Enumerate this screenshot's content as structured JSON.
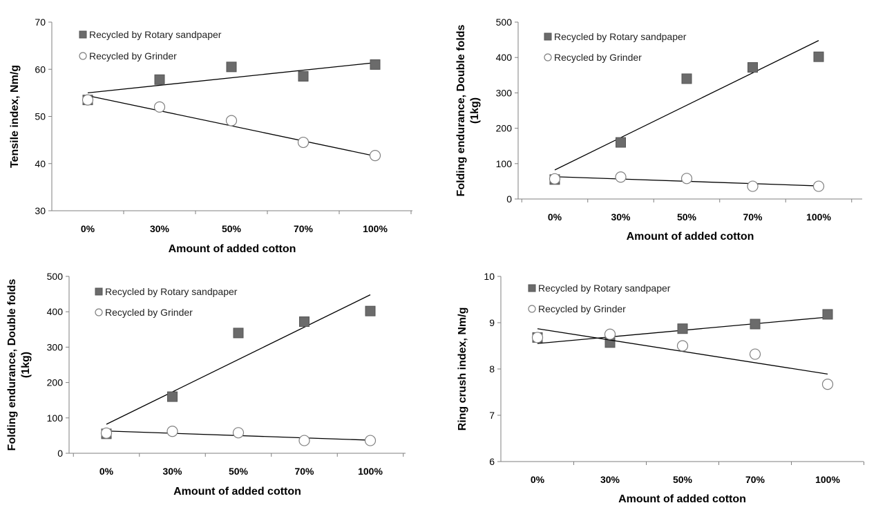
{
  "chart_data": [
    {
      "type": "scatter",
      "title": "",
      "categories": [
        "0%",
        "30%",
        "50%",
        "70%",
        "100%"
      ],
      "xlabel": "Amount of added cotton",
      "ylabel_lines": [
        "Tensile index, Nm/g"
      ],
      "ylim": [
        30,
        70
      ],
      "yticks": [
        30,
        40,
        50,
        60,
        70
      ],
      "legend_position": "top-left",
      "series": [
        {
          "name": "Recycled by Rotary sandpaper",
          "marker": "square",
          "values": [
            53.5,
            57.8,
            60.5,
            58.5,
            61.0
          ],
          "trend": [
            55.0,
            61.4
          ]
        },
        {
          "name": "Recycled by Grinder",
          "marker": "circle",
          "values": [
            53.5,
            52.0,
            49.1,
            44.5,
            41.7
          ],
          "trend": [
            54.4,
            41.6
          ]
        }
      ]
    },
    {
      "type": "scatter",
      "title": "",
      "categories": [
        "0%",
        "30%",
        "50%",
        "70%",
        "100%"
      ],
      "xlabel": "Amount of added cotton",
      "ylabel_lines": [
        "Folding endurance, Double folds",
        "(1kg)"
      ],
      "ylim": [
        0,
        500
      ],
      "yticks": [
        0,
        100,
        200,
        300,
        400,
        500
      ],
      "legend_position": "top-left",
      "series": [
        {
          "name": "Recycled by Rotary sandpaper",
          "marker": "square",
          "values": [
            55,
            160,
            340,
            372,
            402
          ],
          "trend": [
            82,
            448
          ]
        },
        {
          "name": "Recycled by Grinder",
          "marker": "circle",
          "values": [
            57,
            62,
            58,
            36,
            36
          ],
          "trend": [
            63,
            37
          ]
        }
      ]
    },
    {
      "type": "scatter",
      "title": "",
      "categories": [
        "0%",
        "30%",
        "50%",
        "70%",
        "100%"
      ],
      "xlabel": "Amount of added cotton",
      "ylabel_lines": [
        "Folding endurance, Double folds",
        "(1kg)"
      ],
      "ylim": [
        0,
        500
      ],
      "yticks": [
        0,
        100,
        200,
        300,
        400,
        500
      ],
      "legend_position": "top-left",
      "series": [
        {
          "name": "Recycled by Rotary sandpaper",
          "marker": "square",
          "values": [
            55,
            160,
            340,
            372,
            402
          ],
          "trend": [
            82,
            448
          ]
        },
        {
          "name": "Recycled by Grinder",
          "marker": "circle",
          "values": [
            57,
            62,
            58,
            36,
            36
          ],
          "trend": [
            63,
            37
          ]
        }
      ]
    },
    {
      "type": "scatter",
      "title": "",
      "categories": [
        "0%",
        "30%",
        "50%",
        "70%",
        "100%"
      ],
      "xlabel": "Amount of added cotton",
      "ylabel_lines": [
        "Ring crush index, Nm/g"
      ],
      "ylim": [
        6,
        10
      ],
      "yticks": [
        6,
        7,
        8,
        9,
        10
      ],
      "legend_position": "top-left",
      "series": [
        {
          "name": "Recycled by Rotary sandpaper",
          "marker": "square",
          "values": [
            8.68,
            8.57,
            8.87,
            8.97,
            9.18
          ],
          "trend": [
            8.55,
            9.12
          ]
        },
        {
          "name": "Recycled by Grinder",
          "marker": "circle",
          "values": [
            8.68,
            8.75,
            8.5,
            8.32,
            7.67
          ],
          "trend": [
            8.87,
            7.89
          ]
        }
      ]
    }
  ]
}
